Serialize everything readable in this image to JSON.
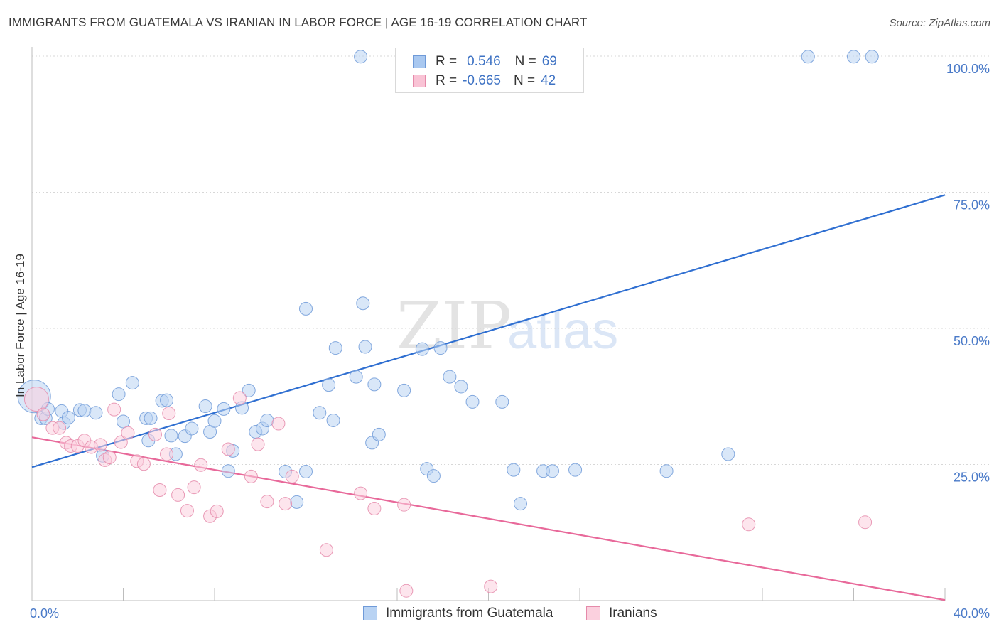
{
  "title": "IMMIGRANTS FROM GUATEMALA VS IRANIAN IN LABOR FORCE | AGE 16-19 CORRELATION CHART",
  "source": "Source: ZipAtlas.com",
  "legend": {
    "rows": [
      {
        "r_label": "R =",
        "r_value": "0.546",
        "n_label": "N =",
        "n_value": "69",
        "color": "#a9c8f0",
        "border": "#6f9ad8"
      },
      {
        "r_label": "R =",
        "r_value": "-0.665",
        "n_label": "N =",
        "n_value": "42",
        "color": "#f9c3d5",
        "border": "#e58aaa"
      }
    ]
  },
  "bottom_legend": [
    {
      "label": "Immigrants from Guatemala",
      "color": "#b9d3f3",
      "border": "#6f9ad8"
    },
    {
      "label": "Iranians",
      "color": "#fbd0de",
      "border": "#e58aaa"
    }
  ],
  "chart_data": {
    "type": "scatter",
    "title": "IMMIGRANTS FROM GUATEMALA VS IRANIAN IN LABOR FORCE | AGE 16-19 CORRELATION CHART",
    "xlabel": "",
    "ylabel": "In Labor Force | Age 16-19",
    "xlim": [
      0,
      40
    ],
    "ylim": [
      0,
      100
    ],
    "x_ticks": [
      "0.0%",
      "40.0%"
    ],
    "y_ticks": [
      {
        "value": 25,
        "label": "25.0%"
      },
      {
        "value": 50,
        "label": "50.0%"
      },
      {
        "value": 75,
        "label": "75.0%"
      },
      {
        "value": 100,
        "label": "100.0%"
      }
    ],
    "grid": true,
    "legend_position": "top-center",
    "series": [
      {
        "name": "Immigrants from Guatemala",
        "color": "#6f9ad8",
        "fill": "#b9d3f3",
        "trend": {
          "x": [
            0,
            40
          ],
          "y": [
            24.5,
            74.5
          ],
          "color": "#2f6fd1"
        },
        "points": [
          [
            0.1,
            37.5,
            24
          ],
          [
            0.4,
            33.5,
            10
          ],
          [
            0.6,
            33.5,
            10
          ],
          [
            0.7,
            35.2,
            10
          ],
          [
            1.3,
            34.8,
            10
          ],
          [
            1.4,
            32.6,
            10
          ],
          [
            1.6,
            33.6,
            10
          ],
          [
            2.1,
            35.0,
            10
          ],
          [
            2.3,
            34.9,
            10
          ],
          [
            2.8,
            34.5,
            10
          ],
          [
            3.1,
            26.6,
            10
          ],
          [
            3.8,
            37.9,
            10
          ],
          [
            4.0,
            32.9,
            10
          ],
          [
            4.4,
            40.0,
            10
          ],
          [
            5.0,
            33.5,
            10
          ],
          [
            5.1,
            29.4,
            10
          ],
          [
            5.2,
            33.5,
            10
          ],
          [
            5.7,
            36.7,
            10
          ],
          [
            5.9,
            36.8,
            10
          ],
          [
            6.1,
            30.3,
            10
          ],
          [
            6.3,
            26.9,
            10
          ],
          [
            6.7,
            30.2,
            10
          ],
          [
            7.0,
            31.6,
            10
          ],
          [
            7.6,
            35.7,
            10
          ],
          [
            7.8,
            31.0,
            10
          ],
          [
            8.0,
            33.0,
            10
          ],
          [
            8.4,
            35.2,
            10
          ],
          [
            8.6,
            23.8,
            10
          ],
          [
            8.8,
            27.5,
            10
          ],
          [
            9.2,
            35.4,
            10
          ],
          [
            9.5,
            38.6,
            10
          ],
          [
            9.8,
            31.0,
            10
          ],
          [
            10.1,
            31.6,
            10
          ],
          [
            10.3,
            33.1,
            10
          ],
          [
            11.1,
            23.7,
            10
          ],
          [
            11.6,
            18.1,
            10
          ],
          [
            12.0,
            53.6,
            10
          ],
          [
            12.0,
            23.7,
            10
          ],
          [
            12.6,
            34.5,
            10
          ],
          [
            13.0,
            39.6,
            10
          ],
          [
            13.2,
            33.1,
            10
          ],
          [
            13.3,
            46.4,
            10
          ],
          [
            14.2,
            41.1,
            10
          ],
          [
            14.4,
            99.9,
            10
          ],
          [
            14.5,
            54.6,
            10
          ],
          [
            14.6,
            46.6,
            10
          ],
          [
            14.9,
            29.0,
            10
          ],
          [
            15.0,
            39.7,
            10
          ],
          [
            15.2,
            30.5,
            10
          ],
          [
            16.3,
            38.6,
            10
          ],
          [
            17.1,
            46.2,
            10
          ],
          [
            17.3,
            24.2,
            10
          ],
          [
            17.6,
            22.9,
            10
          ],
          [
            17.9,
            46.4,
            10
          ],
          [
            18.3,
            41.1,
            10
          ],
          [
            18.8,
            39.3,
            10
          ],
          [
            19.3,
            36.5,
            10
          ],
          [
            20.6,
            36.5,
            10
          ],
          [
            21.1,
            24.0,
            10
          ],
          [
            21.4,
            17.8,
            10
          ],
          [
            22.4,
            23.8,
            10
          ],
          [
            22.8,
            23.8,
            10
          ],
          [
            23.8,
            24.0,
            10
          ],
          [
            27.8,
            23.8,
            10
          ],
          [
            30.5,
            26.9,
            10
          ],
          [
            34.0,
            99.9,
            10
          ],
          [
            36.0,
            99.9,
            10
          ],
          [
            36.8,
            99.9,
            10
          ]
        ]
      },
      {
        "name": "Iranians",
        "color": "#e58aaa",
        "fill": "#fbd0de",
        "trend": {
          "x": [
            0,
            40
          ],
          "y": [
            30.0,
            0.1
          ],
          "color": "#e8699a"
        },
        "points": [
          [
            0.2,
            37.0,
            18
          ],
          [
            0.5,
            34.2,
            10
          ],
          [
            0.9,
            31.7,
            10
          ],
          [
            1.2,
            31.7,
            10
          ],
          [
            1.5,
            29.0,
            10
          ],
          [
            1.7,
            28.4,
            10
          ],
          [
            2.0,
            28.4,
            10
          ],
          [
            2.3,
            29.4,
            10
          ],
          [
            2.6,
            28.2,
            10
          ],
          [
            3.0,
            28.6,
            10
          ],
          [
            3.2,
            25.8,
            10
          ],
          [
            3.4,
            26.3,
            10
          ],
          [
            3.6,
            35.1,
            10
          ],
          [
            3.9,
            29.1,
            10
          ],
          [
            4.2,
            30.8,
            10
          ],
          [
            4.6,
            25.6,
            10
          ],
          [
            4.9,
            25.1,
            10
          ],
          [
            5.4,
            30.5,
            10
          ],
          [
            5.6,
            20.3,
            10
          ],
          [
            5.9,
            26.9,
            10
          ],
          [
            6.0,
            34.4,
            10
          ],
          [
            6.4,
            19.4,
            10
          ],
          [
            6.8,
            16.5,
            10
          ],
          [
            7.1,
            20.8,
            10
          ],
          [
            7.4,
            24.9,
            10
          ],
          [
            7.8,
            15.5,
            10
          ],
          [
            8.1,
            16.4,
            10
          ],
          [
            8.6,
            27.8,
            10
          ],
          [
            9.1,
            37.2,
            10
          ],
          [
            9.6,
            22.8,
            10
          ],
          [
            9.9,
            28.7,
            10
          ],
          [
            10.3,
            18.2,
            10
          ],
          [
            10.8,
            32.5,
            10
          ],
          [
            11.1,
            17.8,
            10
          ],
          [
            11.4,
            22.8,
            10
          ],
          [
            12.9,
            9.3,
            10
          ],
          [
            14.4,
            19.7,
            10
          ],
          [
            15.0,
            16.9,
            10
          ],
          [
            16.3,
            17.6,
            10
          ],
          [
            16.4,
            1.8,
            10
          ],
          [
            20.1,
            2.6,
            10
          ],
          [
            31.4,
            14.0,
            10
          ],
          [
            36.5,
            14.4,
            10
          ]
        ]
      }
    ]
  }
}
